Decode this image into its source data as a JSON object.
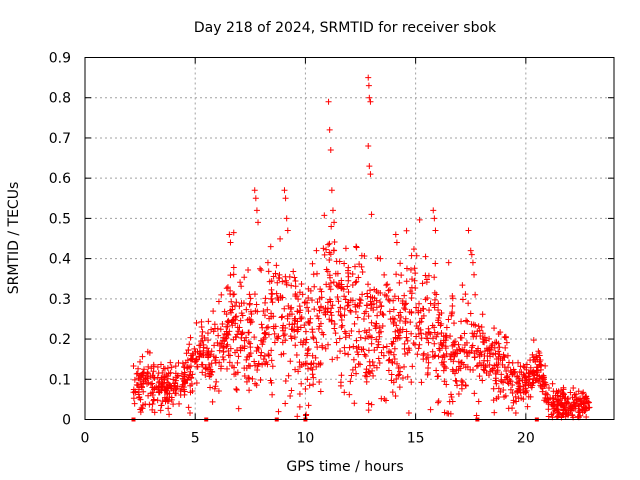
{
  "chart_data": {
    "type": "scatter",
    "title": "Day 218 of 2024, SRMTID for receiver sbok",
    "xlabel": "GPS time / hours",
    "ylabel": "SRMTID / TECUs",
    "xlim": [
      0,
      24
    ],
    "ylim": [
      0,
      0.9
    ],
    "x_ticks": [
      0,
      5,
      10,
      15,
      20
    ],
    "y_ticks": [
      0,
      0.1,
      0.2,
      0.3,
      0.4,
      0.5,
      0.6,
      0.7,
      0.8,
      0.9
    ],
    "grid": true,
    "marker": "+",
    "color": "#ff0000",
    "axis_markers_x": [
      2.2,
      5.5,
      8.7,
      10.0,
      17.8,
      20.5
    ],
    "envelope": [
      {
        "x": 2.2,
        "y": 0.09
      },
      {
        "x": 3.0,
        "y": 0.08
      },
      {
        "x": 4.0,
        "y": 0.08
      },
      {
        "x": 4.8,
        "y": 0.12
      },
      {
        "x": 5.3,
        "y": 0.19
      },
      {
        "x": 5.7,
        "y": 0.13
      },
      {
        "x": 6.5,
        "y": 0.24
      },
      {
        "x": 7.5,
        "y": 0.21
      },
      {
        "x": 8.5,
        "y": 0.25
      },
      {
        "x": 9.5,
        "y": 0.23
      },
      {
        "x": 10.5,
        "y": 0.2
      },
      {
        "x": 11.0,
        "y": 0.32
      },
      {
        "x": 12.0,
        "y": 0.25
      },
      {
        "x": 13.0,
        "y": 0.24
      },
      {
        "x": 14.0,
        "y": 0.22
      },
      {
        "x": 15.0,
        "y": 0.25
      },
      {
        "x": 15.8,
        "y": 0.22
      },
      {
        "x": 16.5,
        "y": 0.14
      },
      {
        "x": 17.5,
        "y": 0.18
      },
      {
        "x": 18.5,
        "y": 0.15
      },
      {
        "x": 19.5,
        "y": 0.09
      },
      {
        "x": 20.3,
        "y": 0.1
      },
      {
        "x": 20.6,
        "y": 0.14
      },
      {
        "x": 21.0,
        "y": 0.05
      },
      {
        "x": 22.0,
        "y": 0.03
      },
      {
        "x": 22.9,
        "y": 0.04
      }
    ],
    "spread": [
      {
        "x": 2.2,
        "y": 0.03
      },
      {
        "x": 4.0,
        "y": 0.03
      },
      {
        "x": 5.5,
        "y": 0.04
      },
      {
        "x": 6.5,
        "y": 0.07
      },
      {
        "x": 9.0,
        "y": 0.08
      },
      {
        "x": 12.0,
        "y": 0.09
      },
      {
        "x": 15.0,
        "y": 0.08
      },
      {
        "x": 17.0,
        "y": 0.07
      },
      {
        "x": 19.5,
        "y": 0.04
      },
      {
        "x": 21.0,
        "y": 0.02
      },
      {
        "x": 22.9,
        "y": 0.02
      }
    ],
    "outliers": [
      {
        "x": 7.7,
        "y": 0.57
      },
      {
        "x": 7.75,
        "y": 0.55
      },
      {
        "x": 7.8,
        "y": 0.52
      },
      {
        "x": 7.85,
        "y": 0.49
      },
      {
        "x": 9.05,
        "y": 0.57
      },
      {
        "x": 9.1,
        "y": 0.55
      },
      {
        "x": 9.15,
        "y": 0.5
      },
      {
        "x": 9.2,
        "y": 0.47
      },
      {
        "x": 6.55,
        "y": 0.46
      },
      {
        "x": 6.6,
        "y": 0.44
      },
      {
        "x": 11.05,
        "y": 0.79
      },
      {
        "x": 11.1,
        "y": 0.72
      },
      {
        "x": 11.15,
        "y": 0.67
      },
      {
        "x": 11.2,
        "y": 0.57
      },
      {
        "x": 11.25,
        "y": 0.52
      },
      {
        "x": 11.3,
        "y": 0.49
      },
      {
        "x": 12.85,
        "y": 0.85
      },
      {
        "x": 12.88,
        "y": 0.83
      },
      {
        "x": 12.9,
        "y": 0.8
      },
      {
        "x": 12.95,
        "y": 0.79
      },
      {
        "x": 12.85,
        "y": 0.68
      },
      {
        "x": 12.9,
        "y": 0.63
      },
      {
        "x": 12.95,
        "y": 0.61
      },
      {
        "x": 13.0,
        "y": 0.51
      },
      {
        "x": 14.1,
        "y": 0.46
      },
      {
        "x": 14.15,
        "y": 0.44
      },
      {
        "x": 15.8,
        "y": 0.52
      },
      {
        "x": 15.85,
        "y": 0.5
      },
      {
        "x": 15.9,
        "y": 0.47
      },
      {
        "x": 17.4,
        "y": 0.47
      },
      {
        "x": 17.5,
        "y": 0.42
      },
      {
        "x": 17.55,
        "y": 0.41
      },
      {
        "x": 17.6,
        "y": 0.39
      },
      {
        "x": 17.65,
        "y": 0.36
      },
      {
        "x": 17.7,
        "y": 0.31
      },
      {
        "x": 16.5,
        "y": 0.39
      },
      {
        "x": 10.5,
        "y": 0.42
      },
      {
        "x": 12.3,
        "y": 0.43
      },
      {
        "x": 13.4,
        "y": 0.4
      },
      {
        "x": 8.3,
        "y": 0.39
      },
      {
        "x": 11.3,
        "y": 0.42
      }
    ]
  }
}
